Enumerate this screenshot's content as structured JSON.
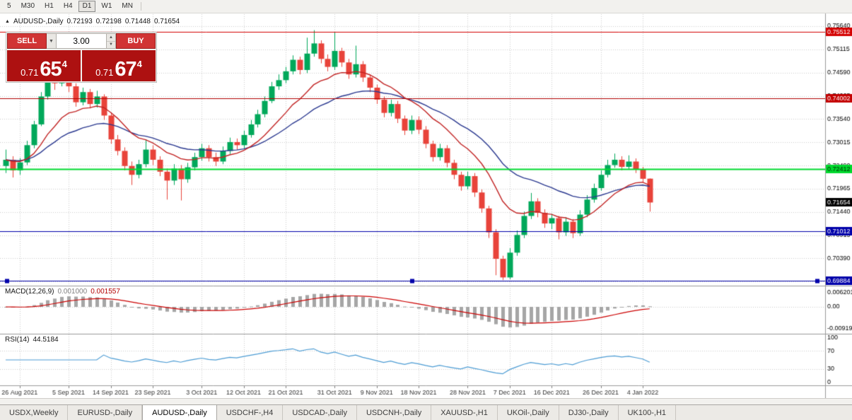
{
  "toolbar": {
    "periods": [
      {
        "label": "5"
      },
      {
        "label": "M30"
      },
      {
        "label": "H1"
      },
      {
        "label": "H4"
      },
      {
        "label": "D1",
        "active": true
      },
      {
        "label": "W1"
      },
      {
        "label": "MN"
      }
    ]
  },
  "chart_header": {
    "title": "AUDUSD-,Daily",
    "open": "0.72193",
    "high": "0.72198",
    "low": "0.71448",
    "close": "0.71654"
  },
  "trade_panel": {
    "sell_label": "SELL",
    "buy_label": "BUY",
    "volume": "3.00",
    "sell_price": {
      "prefix": "0.71",
      "big": "65",
      "sup": "4"
    },
    "buy_price": {
      "prefix": "0.71",
      "big": "67",
      "sup": "4"
    }
  },
  "macd_panel": {
    "label": "MACD(12,26,9)",
    "value_main": "0.001000",
    "value_signal": "0.001557"
  },
  "rsi_panel": {
    "label": "RSI(14)",
    "value": "44.5184"
  },
  "tabs": [
    {
      "label": "USDX,Weekly"
    },
    {
      "label": "EURUSD-,Daily"
    },
    {
      "label": "AUDUSD-,Daily",
      "active": true
    },
    {
      "label": "USDCHF-,H4"
    },
    {
      "label": "USDCAD-,Daily"
    },
    {
      "label": "USDCNH-,Daily"
    },
    {
      "label": "XAUUSD-,H1"
    },
    {
      "label": "UKOil-,Daily"
    },
    {
      "label": "DJ30-,Daily"
    },
    {
      "label": "UK100-,H1"
    }
  ],
  "chart_data": {
    "type": "candlestick",
    "symbol": "AUDUSD-",
    "timeframe": "Daily",
    "last_ohlc": {
      "open": 0.72193,
      "high": 0.72198,
      "low": 0.71448,
      "close": 0.71654
    },
    "price_ticks": [
      "0.75640",
      "0.75115",
      "0.74590",
      "0.74065",
      "0.73540",
      "0.73015",
      "0.72490",
      "0.71965",
      "0.71440",
      "0.70915",
      "0.70390",
      "0.69865"
    ],
    "macd_axis": [
      "0.006201",
      "0.00",
      "-0.00919"
    ],
    "rsi_axis": [
      "100",
      "70",
      "30",
      "0"
    ],
    "rsi_levels": [
      70,
      30
    ],
    "date_ticks": [
      {
        "i": 2,
        "label": "26 Aug 2021"
      },
      {
        "i": 9,
        "label": "5 Sep 2021"
      },
      {
        "i": 15,
        "label": "14 Sep 2021"
      },
      {
        "i": 21,
        "label": "23 Sep 2021"
      },
      {
        "i": 28,
        "label": "3 Oct 2021"
      },
      {
        "i": 34,
        "label": "12 Oct 2021"
      },
      {
        "i": 40,
        "label": "21 Oct 2021"
      },
      {
        "i": 47,
        "label": "31 Oct 2021"
      },
      {
        "i": 53,
        "label": "9 Nov 2021"
      },
      {
        "i": 59,
        "label": "18 Nov 2021"
      },
      {
        "i": 66,
        "label": "28 Nov 2021"
      },
      {
        "i": 72,
        "label": "7 Dec 2021"
      },
      {
        "i": 78,
        "label": "16 Dec 2021"
      },
      {
        "i": 85,
        "label": "26 Dec 2021"
      },
      {
        "i": 91,
        "label": "4 Jan 2022"
      }
    ],
    "hlines": [
      {
        "price": 0.75512,
        "label": "0.75512",
        "color": "#d40000",
        "badge_bg": "#d40000",
        "badge_fg": "#ffffff",
        "width": 1
      },
      {
        "price": 0.74002,
        "label": "0.74002",
        "color": "#b00000",
        "badge_bg": "#c40000",
        "badge_fg": "#ffffff",
        "width": 1
      },
      {
        "price": 0.72412,
        "label": "0.72412",
        "color": "#00d92e",
        "badge_bg": "#00d92e",
        "badge_fg": "#002900",
        "width": 2
      },
      {
        "price": 0.71012,
        "label": "0.71012",
        "color": "#0000aa",
        "badge_bg": "#0000aa",
        "badge_fg": "#ffffff",
        "width": 1
      },
      {
        "price": 0.69884,
        "label": "0.69884",
        "color": "#0000aa",
        "badge_bg": "#0000aa",
        "badge_fg": "#ffffff",
        "width": 1,
        "handles": true
      }
    ],
    "last_price": {
      "value": 0.71654,
      "label": "0.71654",
      "bg": "#000000",
      "fg": "#ffffff"
    },
    "indicators": {
      "ma_fast": {
        "type": "EMA",
        "period": 12
      },
      "ma_slow": {
        "type": "EMA",
        "period": 26
      },
      "macd": {
        "fast": 12,
        "slow": 26,
        "signal": 9
      },
      "rsi": {
        "period": 14
      }
    },
    "colors": {
      "up": "#00a85a",
      "down": "#e8433a",
      "ma_fast": "#c22424",
      "ma_slow": "#2b3990",
      "macd_hist": "#a6a6a6",
      "macd_signal": "#cc0000",
      "rsi": "#4c9cd4",
      "grid": "#cdcdcd",
      "separator": "#9a9a9a",
      "date_text": "#333333",
      "axis_text": "#000000"
    },
    "candles": [
      [
        0.7248,
        0.7285,
        0.7232,
        0.7262
      ],
      [
        0.7262,
        0.727,
        0.7222,
        0.7238
      ],
      [
        0.7238,
        0.7266,
        0.7228,
        0.7256
      ],
      [
        0.7256,
        0.7305,
        0.725,
        0.7295
      ],
      [
        0.7295,
        0.735,
        0.7288,
        0.7342
      ],
      [
        0.7342,
        0.7415,
        0.7338,
        0.7405
      ],
      [
        0.7405,
        0.7478,
        0.7398,
        0.7452
      ],
      [
        0.7452,
        0.7462,
        0.742,
        0.7435
      ],
      [
        0.7435,
        0.747,
        0.7428,
        0.7462
      ],
      [
        0.7462,
        0.7468,
        0.7415,
        0.7428
      ],
      [
        0.7428,
        0.7435,
        0.7382,
        0.7392
      ],
      [
        0.7392,
        0.7425,
        0.7385,
        0.7415
      ],
      [
        0.7415,
        0.7422,
        0.7378,
        0.7388
      ],
      [
        0.7388,
        0.7418,
        0.738,
        0.7405
      ],
      [
        0.7405,
        0.741,
        0.7352,
        0.7362
      ],
      [
        0.7362,
        0.7368,
        0.7298,
        0.7308
      ],
      [
        0.7308,
        0.7318,
        0.7272,
        0.7282
      ],
      [
        0.7282,
        0.729,
        0.7238,
        0.7248
      ],
      [
        0.7248,
        0.7258,
        0.7205,
        0.7228
      ],
      [
        0.7228,
        0.7262,
        0.722,
        0.7252
      ],
      [
        0.7252,
        0.7308,
        0.7245,
        0.7285
      ],
      [
        0.7285,
        0.7295,
        0.725,
        0.7262
      ],
      [
        0.7262,
        0.727,
        0.7225,
        0.7235
      ],
      [
        0.7235,
        0.7242,
        0.7172,
        0.7215
      ],
      [
        0.7215,
        0.7252,
        0.7205,
        0.7242
      ],
      [
        0.7242,
        0.725,
        0.717,
        0.7218
      ],
      [
        0.7218,
        0.7255,
        0.721,
        0.7245
      ],
      [
        0.7245,
        0.7278,
        0.7238,
        0.7268
      ],
      [
        0.7268,
        0.7298,
        0.726,
        0.7288
      ],
      [
        0.7288,
        0.7295,
        0.7258,
        0.7268
      ],
      [
        0.7268,
        0.7278,
        0.7248,
        0.7258
      ],
      [
        0.7258,
        0.7292,
        0.7252,
        0.7282
      ],
      [
        0.7282,
        0.7312,
        0.7275,
        0.7302
      ],
      [
        0.7302,
        0.731,
        0.7285,
        0.7295
      ],
      [
        0.7295,
        0.7328,
        0.7288,
        0.7318
      ],
      [
        0.7318,
        0.7352,
        0.7312,
        0.7342
      ],
      [
        0.7342,
        0.7375,
        0.7335,
        0.7365
      ],
      [
        0.7365,
        0.7405,
        0.7358,
        0.7395
      ],
      [
        0.7395,
        0.7438,
        0.739,
        0.7428
      ],
      [
        0.7428,
        0.7455,
        0.742,
        0.7442
      ],
      [
        0.7442,
        0.7472,
        0.7435,
        0.7462
      ],
      [
        0.7462,
        0.7498,
        0.7455,
        0.7488
      ],
      [
        0.7488,
        0.7495,
        0.7455,
        0.7465
      ],
      [
        0.7465,
        0.7538,
        0.7458,
        0.7502
      ],
      [
        0.7502,
        0.7555,
        0.7495,
        0.7525
      ],
      [
        0.7525,
        0.7532,
        0.748,
        0.749
      ],
      [
        0.749,
        0.75,
        0.7462,
        0.7472
      ],
      [
        0.7472,
        0.755,
        0.7465,
        0.7508
      ],
      [
        0.7508,
        0.7515,
        0.7472,
        0.7482
      ],
      [
        0.7482,
        0.749,
        0.7445,
        0.7455
      ],
      [
        0.7455,
        0.752,
        0.7448,
        0.7478
      ],
      [
        0.7478,
        0.7485,
        0.7438,
        0.7448
      ],
      [
        0.7448,
        0.7455,
        0.7415,
        0.7425
      ],
      [
        0.7425,
        0.7432,
        0.7388,
        0.7398
      ],
      [
        0.7398,
        0.7405,
        0.7358,
        0.7368
      ],
      [
        0.7368,
        0.7398,
        0.736,
        0.7388
      ],
      [
        0.7388,
        0.7395,
        0.7345,
        0.7355
      ],
      [
        0.7355,
        0.7362,
        0.7318,
        0.7328
      ],
      [
        0.7328,
        0.7362,
        0.732,
        0.7352
      ],
      [
        0.7352,
        0.736,
        0.732,
        0.733
      ],
      [
        0.733,
        0.7338,
        0.7288,
        0.7298
      ],
      [
        0.7298,
        0.7305,
        0.7258,
        0.7268
      ],
      [
        0.7268,
        0.7298,
        0.726,
        0.7288
      ],
      [
        0.7288,
        0.7295,
        0.7245,
        0.7255
      ],
      [
        0.7255,
        0.7262,
        0.7218,
        0.7228
      ],
      [
        0.7228,
        0.7235,
        0.7192,
        0.7202
      ],
      [
        0.7202,
        0.7235,
        0.7195,
        0.7225
      ],
      [
        0.7225,
        0.7232,
        0.7178,
        0.7188
      ],
      [
        0.7188,
        0.7195,
        0.7142,
        0.7152
      ],
      [
        0.7152,
        0.7158,
        0.7085,
        0.7098
      ],
      [
        0.7098,
        0.7105,
        0.7001,
        0.7038
      ],
      [
        0.7038,
        0.7045,
        0.699,
        0.6996
      ],
      [
        0.6996,
        0.7062,
        0.6992,
        0.7052
      ],
      [
        0.7052,
        0.7102,
        0.7045,
        0.7092
      ],
      [
        0.7092,
        0.7145,
        0.7085,
        0.7135
      ],
      [
        0.7135,
        0.7187,
        0.7128,
        0.7168
      ],
      [
        0.7168,
        0.7175,
        0.7132,
        0.7142
      ],
      [
        0.7142,
        0.715,
        0.7108,
        0.7118
      ],
      [
        0.7118,
        0.714,
        0.7105,
        0.713
      ],
      [
        0.713,
        0.7135,
        0.7082,
        0.7098
      ],
      [
        0.7098,
        0.7132,
        0.709,
        0.7122
      ],
      [
        0.7122,
        0.7128,
        0.7085,
        0.7096
      ],
      [
        0.7096,
        0.7148,
        0.709,
        0.7138
      ],
      [
        0.7138,
        0.7182,
        0.7132,
        0.7172
      ],
      [
        0.7172,
        0.7208,
        0.7165,
        0.7198
      ],
      [
        0.7198,
        0.7238,
        0.7192,
        0.7228
      ],
      [
        0.7228,
        0.7262,
        0.7222,
        0.725
      ],
      [
        0.725,
        0.7276,
        0.7244,
        0.7262
      ],
      [
        0.7262,
        0.727,
        0.7238,
        0.7246
      ],
      [
        0.7246,
        0.7272,
        0.724,
        0.7258
      ],
      [
        0.7258,
        0.7265,
        0.7232,
        0.724
      ],
      [
        0.724,
        0.7246,
        0.721,
        0.7219
      ],
      [
        0.72193,
        0.72198,
        0.71448,
        0.71654
      ]
    ]
  }
}
